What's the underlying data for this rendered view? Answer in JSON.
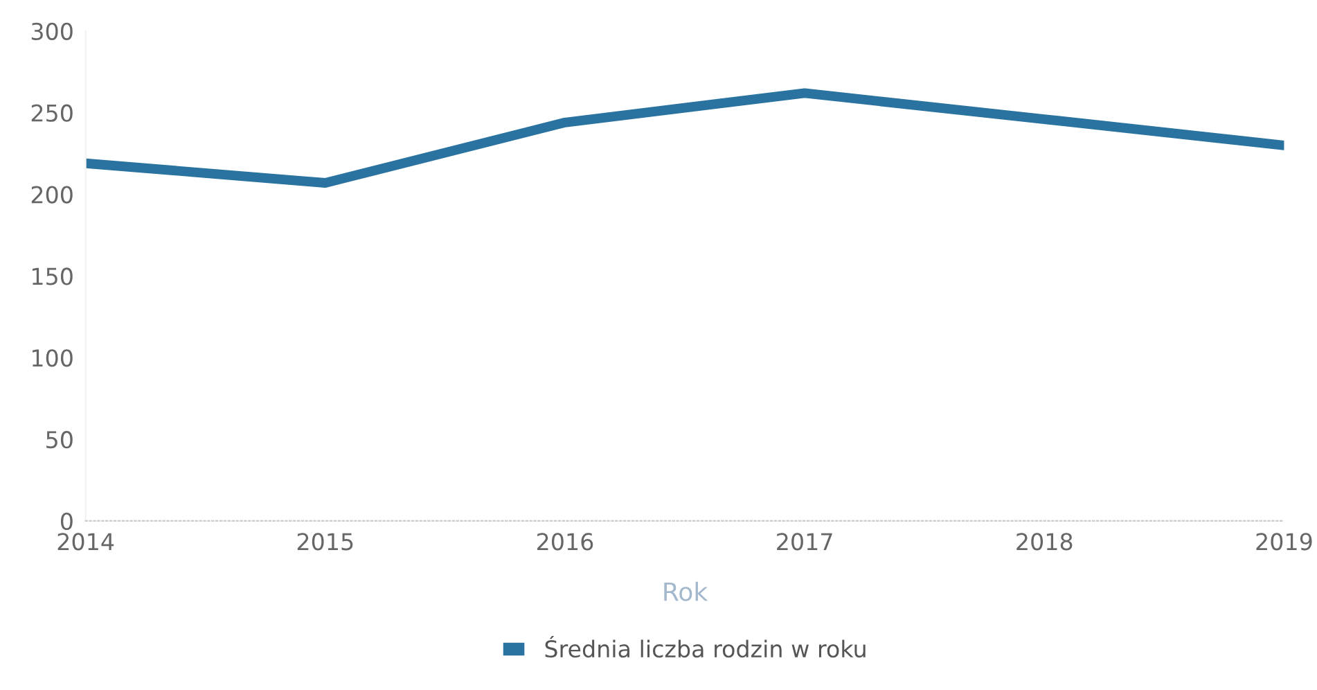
{
  "chart_data": {
    "type": "line",
    "xlabel": "Rok",
    "x": [
      2014,
      2015,
      2016,
      2017,
      2018,
      2019
    ],
    "series": [
      {
        "name": "Średnia liczba rodzin w roku",
        "color": "#2a73a0",
        "values": [
          219,
          207,
          244,
          262,
          246,
          230
        ]
      }
    ],
    "xlim": [
      2014,
      2019
    ],
    "xticks": [
      2014,
      2015,
      2016,
      2017,
      2018,
      2019
    ],
    "ylim": [
      0,
      300
    ],
    "yticks": [
      0,
      50,
      100,
      150,
      200,
      250,
      300
    ],
    "grid": false,
    "legend": "bottom",
    "marker": "none",
    "line_style": "solid"
  }
}
